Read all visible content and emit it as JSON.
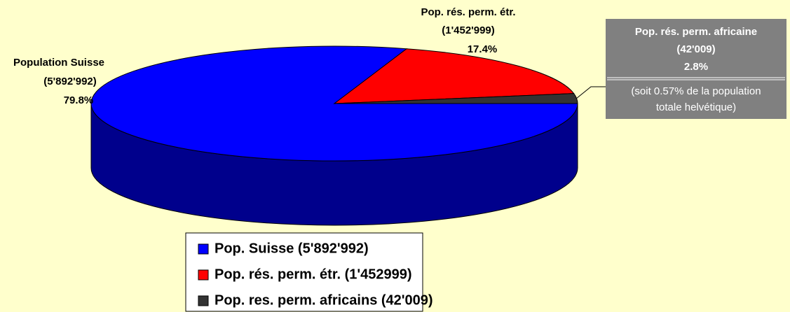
{
  "chart_data": {
    "type": "pie",
    "categories": [
      "Population Suisse",
      "Pop. rés. perm. étr.",
      "Pop. rés. perm. africaine"
    ],
    "count_labels": [
      "(5'892'992)",
      "(1'452'999)",
      "(42'009)"
    ],
    "values": [
      79.8,
      17.4,
      2.8
    ],
    "value_labels": [
      "79.8%",
      "17.4%",
      "2.8%"
    ],
    "colors": [
      "#0000ff",
      "#ff0000",
      "#333333"
    ],
    "legend": [
      "Pop. Suisse (5'892'992)",
      "Pop. rés. perm. étr. (1'452999)",
      "Pop. res. perm. africains (42'009)"
    ],
    "annotation": [
      "(soit 0.57% de la population",
      "totale helvétique)"
    ]
  }
}
